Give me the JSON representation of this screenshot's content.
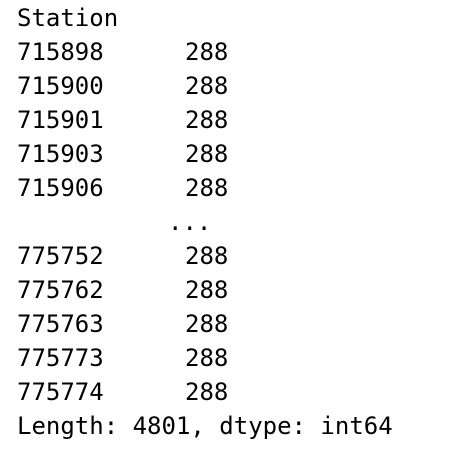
{
  "series": {
    "index_name": "Station",
    "rows_head": [
      {
        "index": "715898",
        "value": "288"
      },
      {
        "index": "715900",
        "value": "288"
      },
      {
        "index": "715901",
        "value": "288"
      },
      {
        "index": "715903",
        "value": "288"
      },
      {
        "index": "715906",
        "value": "288"
      }
    ],
    "ellipsis": "...",
    "rows_tail": [
      {
        "index": "775752",
        "value": "288"
      },
      {
        "index": "775762",
        "value": "288"
      },
      {
        "index": "775763",
        "value": "288"
      },
      {
        "index": "775773",
        "value": "288"
      },
      {
        "index": "775774",
        "value": "288"
      }
    ],
    "footer": "Length: 4801, dtype: int64"
  }
}
